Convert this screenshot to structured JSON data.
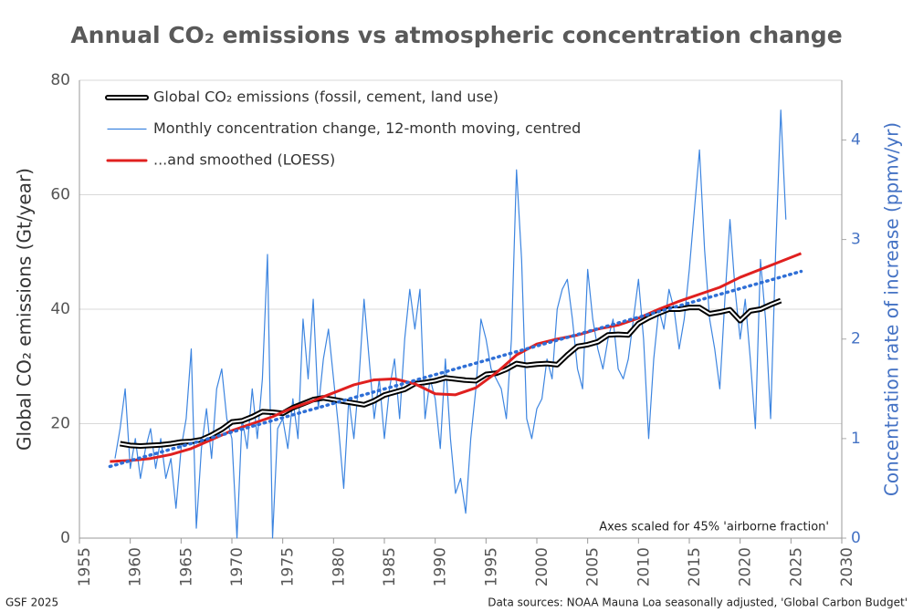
{
  "chart_data": {
    "type": "line",
    "title": "Annual CO₂ emissions vs atmospheric concentration change",
    "ylabel": "Global CO₂ emissions (Gt/year)",
    "y2label": "Concentration rate of increase (ppmv/yr)",
    "annotation": "Axes scaled for 45% 'airborne fraction'",
    "footer_left": "GSF 2025",
    "footer_right": "Data sources: NOAA Mauna Loa seasonally adjusted, 'Global Carbon Budget'",
    "xlim": [
      1955,
      2030
    ],
    "xticks": [
      1955,
      1960,
      1965,
      1970,
      1975,
      1980,
      1985,
      1990,
      1995,
      2000,
      2005,
      2010,
      2015,
      2020,
      2025,
      2030
    ],
    "ylim": [
      0,
      80
    ],
    "yticks": [
      0,
      20,
      40,
      60,
      80
    ],
    "y2lim": [
      0,
      4.6
    ],
    "y2ticks": [
      0,
      1,
      2,
      3,
      4
    ],
    "grid": true,
    "legend": "upper left",
    "series": [
      {
        "name": "Global CO₂ emissions (fossil, cement, land use)",
        "color": "#000000",
        "style": "double",
        "axis": "y",
        "x": [
          1959,
          1960,
          1961,
          1962,
          1963,
          1964,
          1965,
          1966,
          1967,
          1968,
          1969,
          1970,
          1971,
          1972,
          1973,
          1974,
          1975,
          1976,
          1977,
          1978,
          1979,
          1980,
          1981,
          1982,
          1983,
          1984,
          1985,
          1986,
          1987,
          1988,
          1989,
          1990,
          1991,
          1992,
          1993,
          1994,
          1995,
          1996,
          1997,
          1998,
          1999,
          2000,
          2001,
          2002,
          2003,
          2004,
          2005,
          2006,
          2007,
          2008,
          2009,
          2010,
          2011,
          2012,
          2013,
          2014,
          2015,
          2016,
          2017,
          2018,
          2019,
          2020,
          2021,
          2022,
          2023,
          2024
        ],
        "values": [
          16.5,
          16.2,
          16.1,
          16.2,
          16.3,
          16.5,
          16.8,
          16.9,
          17.2,
          18,
          19,
          20.3,
          20.5,
          21.2,
          22.1,
          22,
          21.8,
          22.8,
          23.5,
          24.2,
          24.5,
          24.2,
          23.9,
          23.6,
          23.3,
          24,
          25,
          25.5,
          26,
          27,
          27.2,
          27.5,
          28,
          27.8,
          27.6,
          27.5,
          28.6,
          28.8,
          29.5,
          30.5,
          30.2,
          30.4,
          30.5,
          30.3,
          32,
          33.5,
          33.8,
          34.3,
          35.5,
          35.6,
          35.5,
          37.5,
          38.5,
          39.3,
          40,
          40,
          40.3,
          40.3,
          39.2,
          39.5,
          39.9,
          38,
          39.7,
          40,
          40.8,
          41.5
        ]
      },
      {
        "name": "Monthly concentration change, 12-month moving, centred",
        "color": "#3d85e0",
        "style": "thin",
        "axis": "y2",
        "x": [
          1958.5,
          1959,
          1959.5,
          1960,
          1960.5,
          1961,
          1961.5,
          1962,
          1962.5,
          1963,
          1963.5,
          1964,
          1964.5,
          1965,
          1965.5,
          1966,
          1966.5,
          1967,
          1967.5,
          1968,
          1968.5,
          1969,
          1969.5,
          1970,
          1970.5,
          1971,
          1971.5,
          1972,
          1972.5,
          1973,
          1973.5,
          1974,
          1974.5,
          1975,
          1975.5,
          1976,
          1976.5,
          1977,
          1977.5,
          1978,
          1978.5,
          1979,
          1979.5,
          1980,
          1980.5,
          1981,
          1981.5,
          1982,
          1982.5,
          1983,
          1983.5,
          1984,
          1984.5,
          1985,
          1985.5,
          1986,
          1986.5,
          1987,
          1987.5,
          1988,
          1988.5,
          1989,
          1989.5,
          1990,
          1990.5,
          1991,
          1991.5,
          1992,
          1992.5,
          1993,
          1993.5,
          1994,
          1994.5,
          1995,
          1995.5,
          1996,
          1996.5,
          1997,
          1997.5,
          1998,
          1998.5,
          1999,
          1999.5,
          2000,
          2000.5,
          2001,
          2001.5,
          2002,
          2002.5,
          2003,
          2003.5,
          2004,
          2004.5,
          2005,
          2005.5,
          2006,
          2006.5,
          2007,
          2007.5,
          2008,
          2008.5,
          2009,
          2009.5,
          2010,
          2010.5,
          2011,
          2011.5,
          2012,
          2012.5,
          2013,
          2013.5,
          2014,
          2014.5,
          2015,
          2015.5,
          2016,
          2016.5,
          2017,
          2017.5,
          2018,
          2018.5,
          2019,
          2019.5,
          2020,
          2020.5,
          2021,
          2021.5,
          2022,
          2022.5,
          2023,
          2023.5,
          2024,
          2024.5
        ],
        "values": [
          0.8,
          1.1,
          1.5,
          0.7,
          1.0,
          0.6,
          0.9,
          1.1,
          0.7,
          1.0,
          0.6,
          0.8,
          0.3,
          0.9,
          1.2,
          1.9,
          0.1,
          0.9,
          1.3,
          0.8,
          1.5,
          1.7,
          1.2,
          1.0,
          0.0,
          1.2,
          0.9,
          1.5,
          1.0,
          1.6,
          2.85,
          0.0,
          1.1,
          1.2,
          0.9,
          1.4,
          1.0,
          2.2,
          1.6,
          2.4,
          1.3,
          1.8,
          2.1,
          1.6,
          1.1,
          0.5,
          1.4,
          1.0,
          1.6,
          2.4,
          1.8,
          1.2,
          1.6,
          1.0,
          1.5,
          1.8,
          1.2,
          2.0,
          2.5,
          2.1,
          2.5,
          1.2,
          1.6,
          1.4,
          0.9,
          1.8,
          1.0,
          0.45,
          0.6,
          0.25,
          1.0,
          1.5,
          2.2,
          2.0,
          1.7,
          1.6,
          1.5,
          1.2,
          2.0,
          3.7,
          2.8,
          1.2,
          1.0,
          1.3,
          1.4,
          1.8,
          1.6,
          2.3,
          2.5,
          2.6,
          2.2,
          1.7,
          1.5,
          2.7,
          2.2,
          1.9,
          1.7,
          2.0,
          2.2,
          1.7,
          1.6,
          1.8,
          2.2,
          2.6,
          2.0,
          1.0,
          1.8,
          2.3,
          2.1,
          2.5,
          2.3,
          1.9,
          2.2,
          2.7,
          3.3,
          3.9,
          2.9,
          2.2,
          1.9,
          1.5,
          2.4,
          3.2,
          2.5,
          2.0,
          2.4,
          1.8,
          1.1,
          2.8,
          2.2,
          1.2,
          2.9,
          4.3,
          3.2
        ]
      },
      {
        "name": "...and smoothed (LOESS)",
        "color": "#e0201f",
        "style": "thick",
        "axis": "y2",
        "x": [
          1958,
          1960,
          1962,
          1964,
          1966,
          1968,
          1970,
          1972,
          1974,
          1976,
          1978,
          1980,
          1982,
          1984,
          1986,
          1988,
          1990,
          1992,
          1994,
          1996,
          1998,
          2000,
          2002,
          2004,
          2006,
          2008,
          2010,
          2012,
          2014,
          2016,
          2018,
          2020,
          2022,
          2024,
          2026
        ],
        "values": [
          0.77,
          0.78,
          0.8,
          0.84,
          0.9,
          0.99,
          1.08,
          1.15,
          1.22,
          1.31,
          1.38,
          1.46,
          1.54,
          1.59,
          1.6,
          1.55,
          1.45,
          1.44,
          1.51,
          1.66,
          1.84,
          1.95,
          2.0,
          2.04,
          2.1,
          2.14,
          2.21,
          2.3,
          2.38,
          2.45,
          2.52,
          2.62,
          2.7,
          2.78,
          2.86
        ]
      },
      {
        "color": "#2f6fd6",
        "style": "dotted",
        "axis": "y2",
        "x": [
          1958,
          2026
        ],
        "values": [
          0.72,
          2.68
        ]
      }
    ]
  }
}
